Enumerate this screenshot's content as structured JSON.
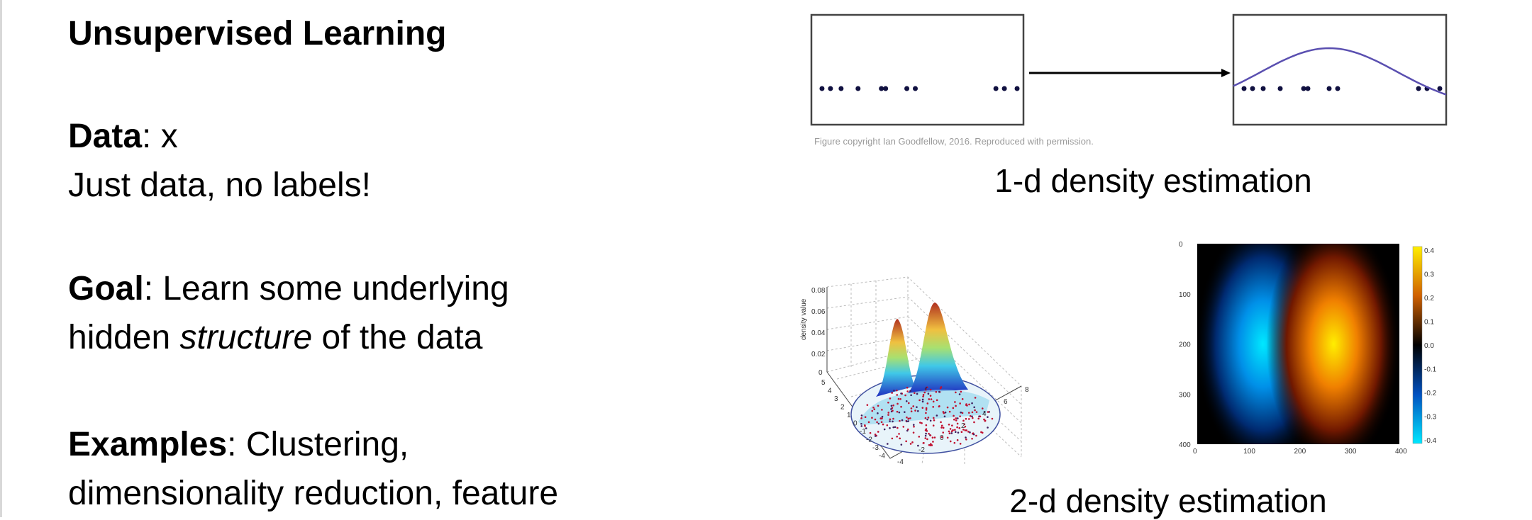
{
  "left": {
    "title": "Unsupervised Learning",
    "data_label": "Data",
    "data_value": ": x",
    "data_note": "Just data, no labels!",
    "goal_label": "Goal",
    "goal_text_1": ": Learn some underlying",
    "goal_text_2a": "hidden ",
    "goal_text_2b": "structure",
    "goal_text_2c": " of the data",
    "examples_label": "Examples",
    "examples_text_1": ": Clustering,",
    "examples_text_2": "dimensionality reduction, feature"
  },
  "right": {
    "copyright": "Figure copyright Ian Goodfellow, 2016. Reproduced with permission.",
    "caption_1d": "1-d density estimation",
    "caption_2d": "2-d density estimation"
  },
  "chart_data": [
    {
      "type": "scatter",
      "title": "1-d data points",
      "points": [
        0.05,
        0.09,
        0.14,
        0.22,
        0.33,
        0.35,
        0.45,
        0.49,
        0.87,
        0.91,
        0.97
      ],
      "curve": {
        "type": "gaussian",
        "mean": 0.45,
        "color": "#5a4fb0"
      }
    },
    {
      "type": "surface",
      "zlabel": "density value",
      "zticks": [
        "0.08",
        "0.06",
        "0.04",
        "0.02",
        "0"
      ],
      "yticks": [
        "5",
        "4",
        "3",
        "2",
        "1",
        "0",
        "-1",
        "-2",
        "-3",
        "-4"
      ],
      "xticks": [
        "-4",
        "-2",
        "0",
        "2",
        "4",
        "6",
        "8"
      ]
    },
    {
      "type": "heatmap",
      "xticks": [
        "0",
        "100",
        "200",
        "300",
        "400"
      ],
      "yticks": [
        "0",
        "100",
        "200",
        "300",
        "400"
      ],
      "colorbar_ticks": [
        "0.4",
        "0.3",
        "0.2",
        "0.1",
        "0.0",
        "-0.1",
        "-0.2",
        "-0.3",
        "-0.4"
      ],
      "xlim": [
        0,
        400
      ],
      "ylim": [
        400,
        0
      ],
      "blobs": [
        {
          "x": 130,
          "y": 200,
          "value": -0.4
        },
        {
          "x": 270,
          "y": 200,
          "value": 0.4
        }
      ]
    }
  ]
}
